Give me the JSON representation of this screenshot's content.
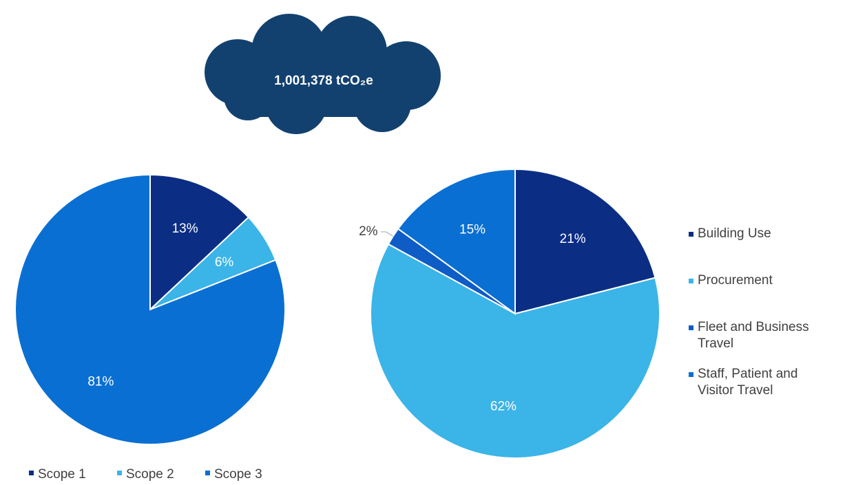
{
  "header": {
    "total": "1,001,378 tCO₂e"
  },
  "chart_data": [
    {
      "type": "pie",
      "categories": [
        "Scope 1",
        "Scope 2",
        "Scope 3"
      ],
      "values": [
        13,
        6,
        81
      ],
      "value_labels": [
        "13%",
        "6%",
        "81%"
      ],
      "colors": [
        "#0b2e84",
        "#3bb4e8",
        "#0a6fd2"
      ],
      "legend": "bottom"
    },
    {
      "type": "pie",
      "categories": [
        "Building Use",
        "Procurement",
        "Fleet and Business Travel",
        "Staff, Patient and Visitor Travel"
      ],
      "values": [
        21,
        62,
        2,
        15
      ],
      "value_labels": [
        "21%",
        "62%",
        "2%",
        "15%"
      ],
      "colors": [
        "#0b2e84",
        "#3bb4e8",
        "#0e5cc6",
        "#0a6fd2"
      ],
      "legend": "right"
    }
  ]
}
